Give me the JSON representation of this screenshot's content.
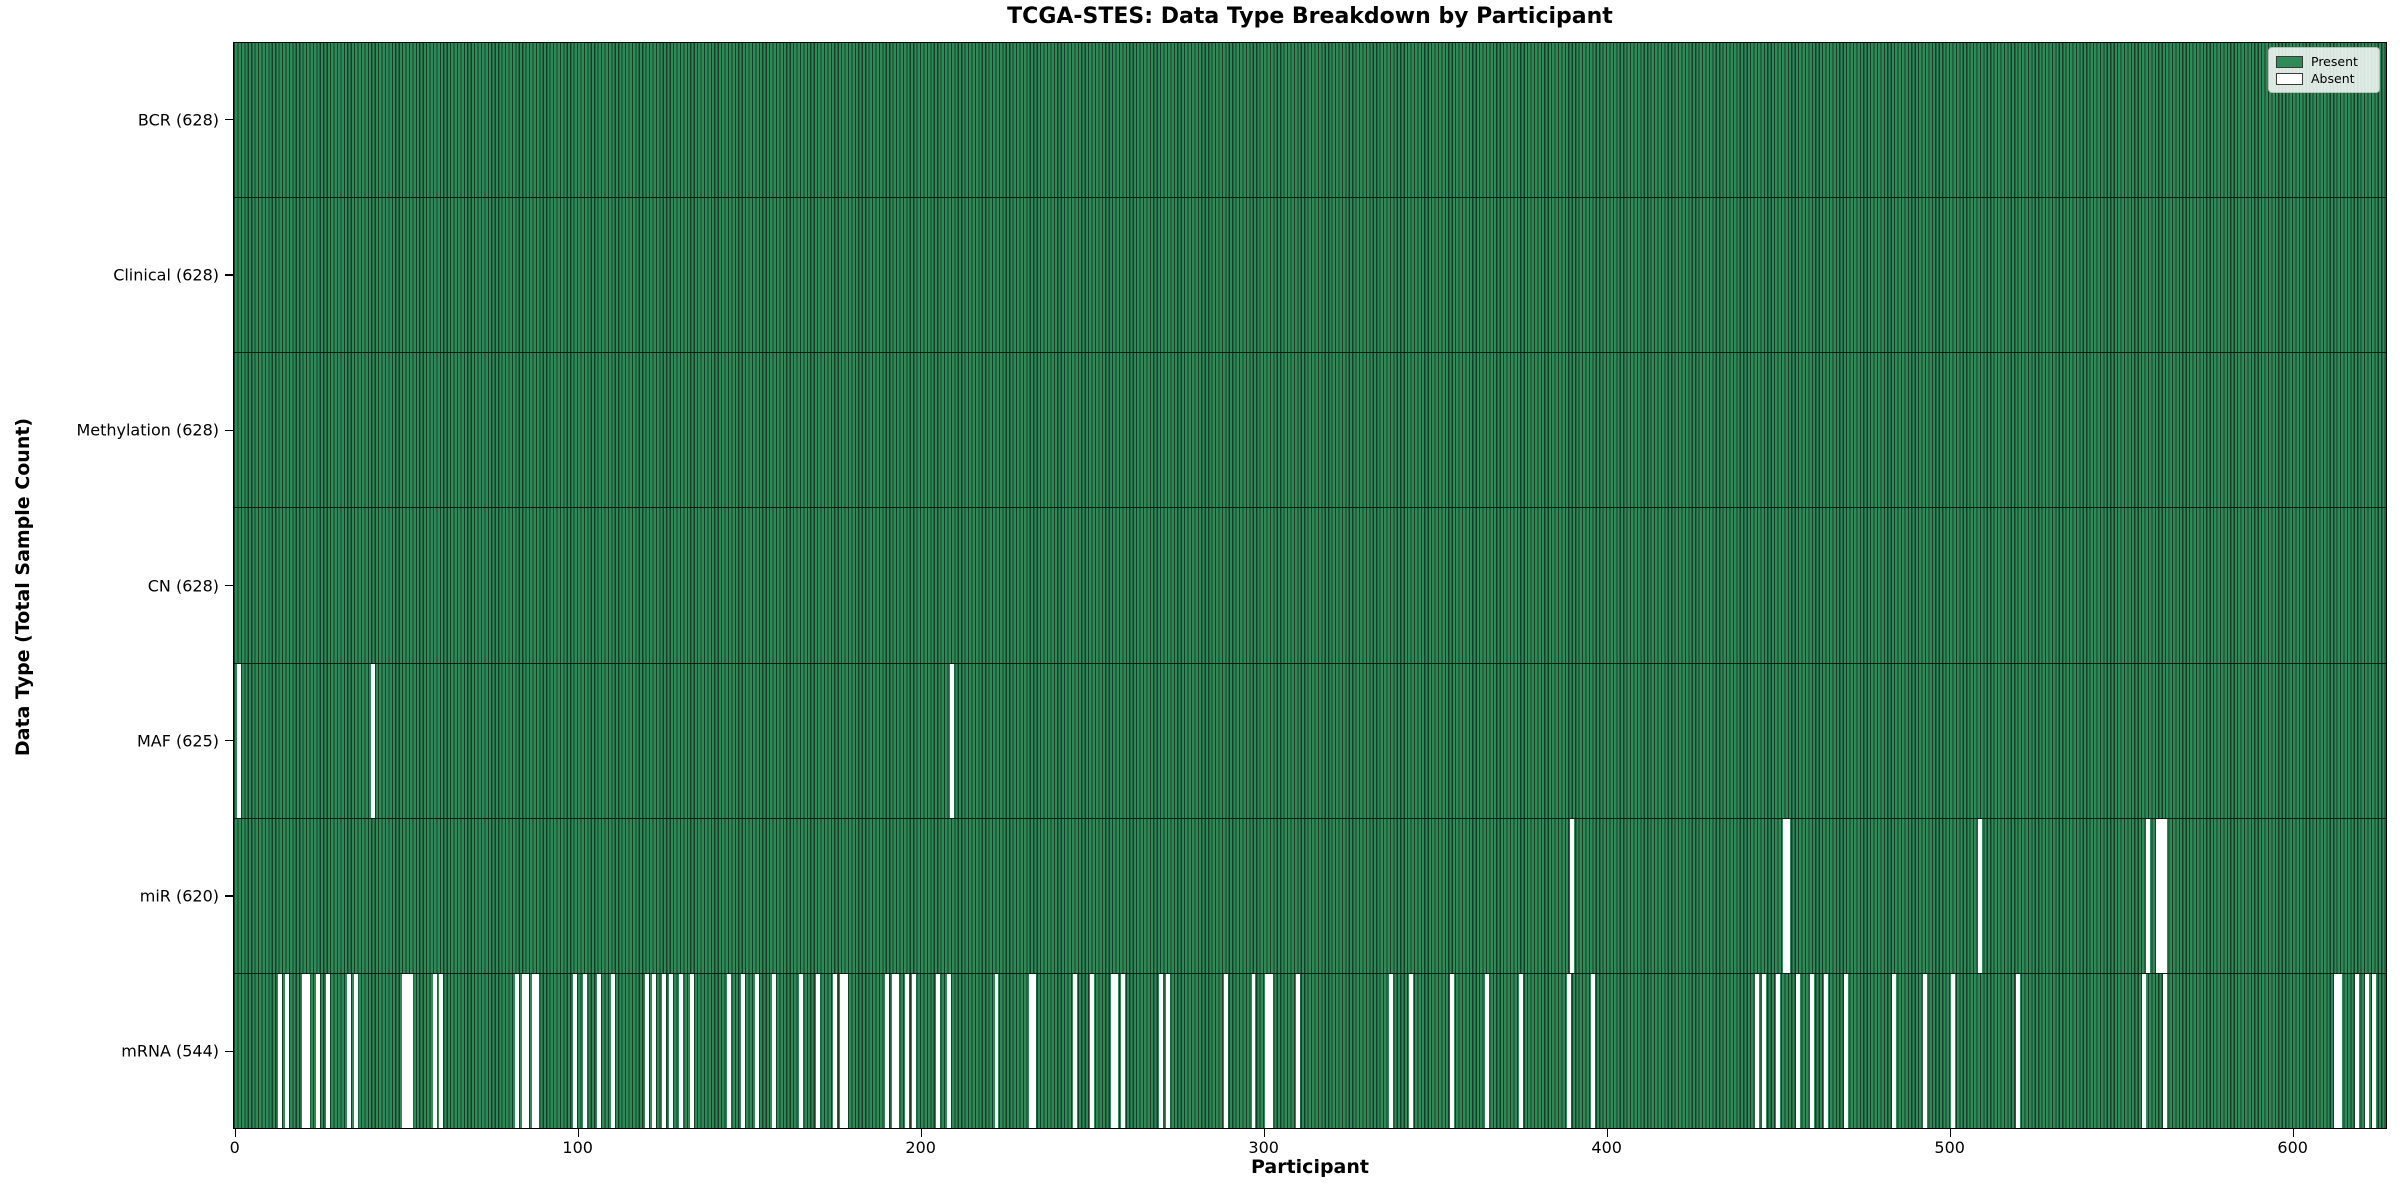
{
  "chart_data": {
    "type": "heatmap",
    "title": "TCGA-STES: Data Type Breakdown by Participant",
    "xlabel": "Participant",
    "ylabel": "Data Type (Total Sample Count)",
    "legend": [
      {
        "label": "Present",
        "color": "#2e8b57"
      },
      {
        "label": "Absent",
        "color": "#ffffff"
      }
    ],
    "colors": {
      "present": "#2e8b57",
      "bar_edge": "#173c28",
      "absent": "#ffffff",
      "separator": "#0a1a10"
    },
    "x_axis": {
      "ticks": [
        "0",
        "100",
        "200",
        "300",
        "400",
        "500",
        "600"
      ],
      "n_participants": 628
    },
    "grid": false,
    "legend_position": "upper right",
    "rows": [
      {
        "name": "BCR",
        "label": "BCR (628)",
        "total": 628,
        "absent": []
      },
      {
        "name": "Clinical",
        "label": "Clinical (628)",
        "total": 628,
        "absent": []
      },
      {
        "name": "Methylation",
        "label": "Methylation (628)",
        "total": 628,
        "absent": []
      },
      {
        "name": "CN",
        "label": "CN (628)",
        "total": 628,
        "absent": []
      },
      {
        "name": "MAF",
        "label": "MAF (625)",
        "total": 625,
        "absent": [
          1,
          40,
          209
        ]
      },
      {
        "name": "miR",
        "label": "miR (620)",
        "total": 620,
        "absent": [
          390,
          452,
          453,
          509,
          558,
          561,
          562,
          563
        ]
      },
      {
        "name": "mRNA",
        "label": "mRNA (544)",
        "total": 544,
        "absent": [
          13,
          15,
          20,
          21,
          24,
          27,
          33,
          35,
          49,
          50,
          51,
          58,
          60,
          82,
          84,
          85,
          87,
          88,
          99,
          102,
          106,
          110,
          120,
          122,
          125,
          127,
          130,
          133,
          144,
          148,
          152,
          157,
          165,
          170,
          175,
          177,
          178,
          190,
          192,
          193,
          196,
          198,
          205,
          208,
          222,
          232,
          233,
          245,
          250,
          256,
          257,
          259,
          270,
          272,
          289,
          297,
          301,
          302,
          310,
          337,
          343,
          355,
          365,
          375,
          389,
          396,
          444,
          446,
          450,
          456,
          460,
          464,
          470,
          484,
          493,
          501,
          520,
          557,
          563,
          613,
          614,
          619,
          622,
          624
        ]
      }
    ]
  }
}
